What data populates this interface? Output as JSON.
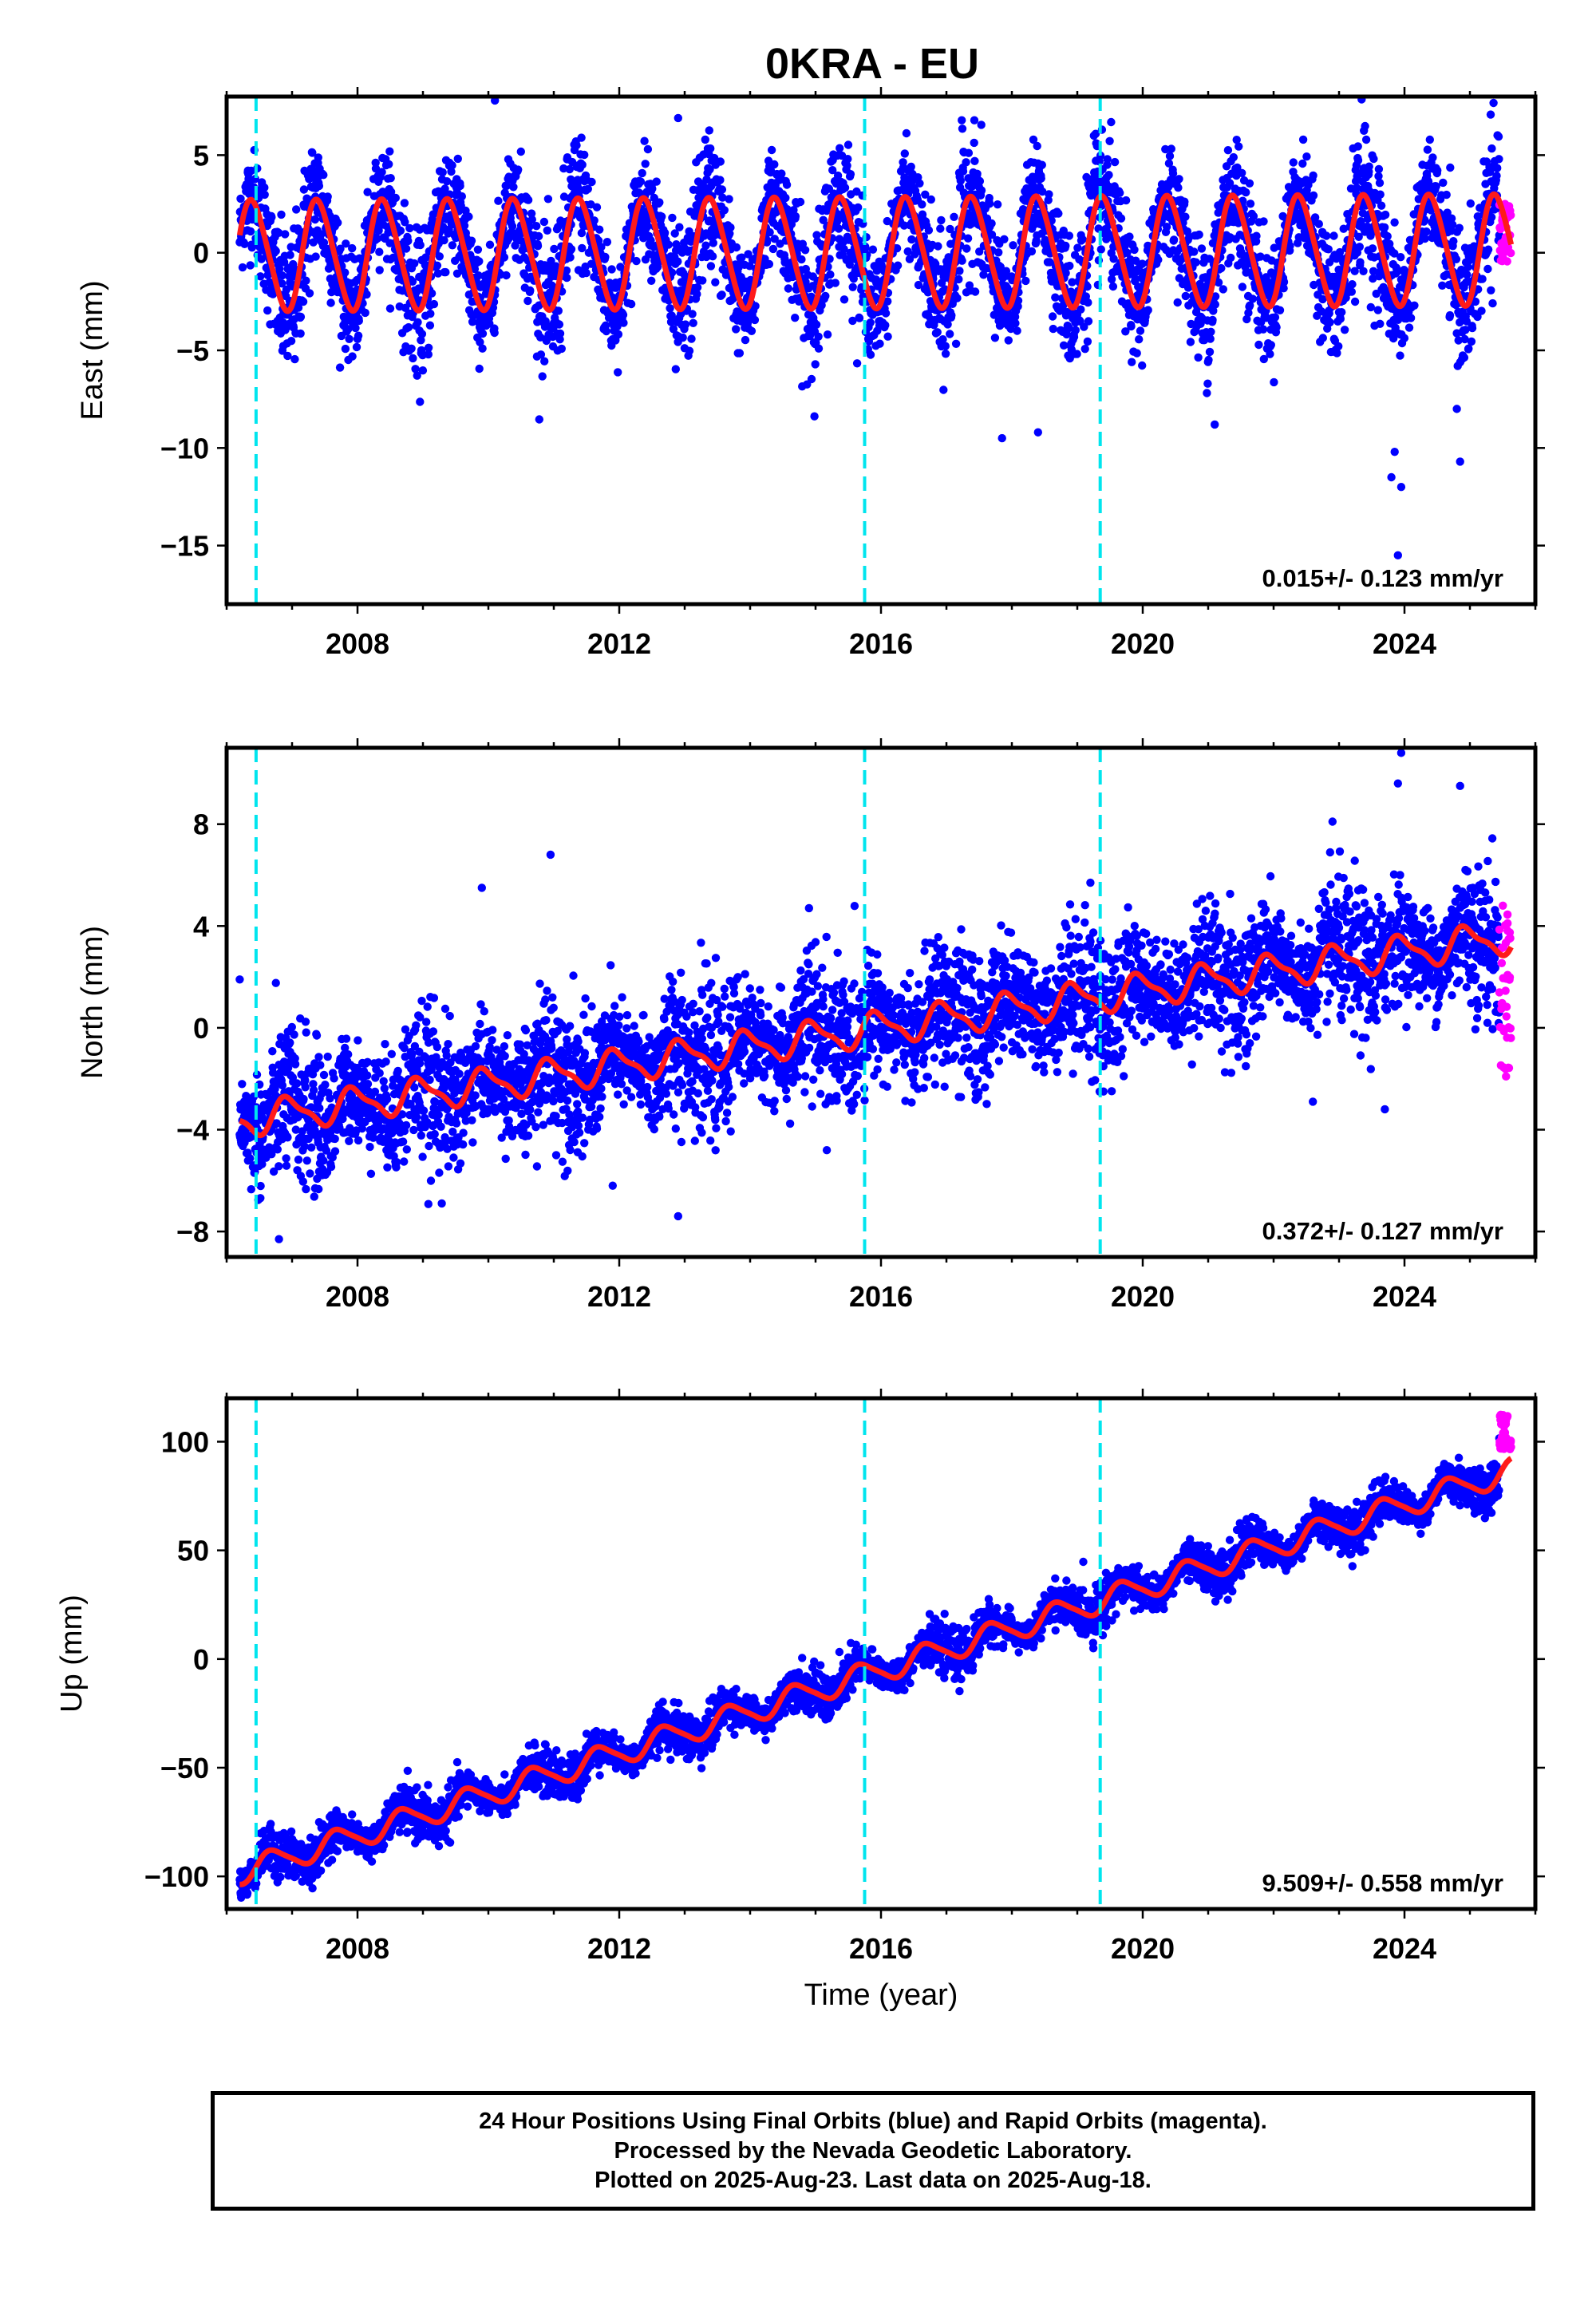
{
  "title": "0KRA - EU",
  "colors": {
    "final_points": "#0000ff",
    "rapid_points": "#ff00ff",
    "model_fit": "#ff1a1a",
    "event_lines": "#00e5ee",
    "frame": "#000000"
  },
  "footer": {
    "line1": "24 Hour Positions Using Final Orbits (blue) and Rapid Orbits (magenta).",
    "line2": "Processed by the Nevada Geodetic Laboratory.",
    "line3": "Plotted on 2025-Aug-23. Last data on 2025-Aug-18."
  },
  "chart_data": [
    {
      "type": "scatter",
      "component": "east",
      "ylabel": "East (mm)",
      "xlabel": "",
      "xlim": [
        2006.0,
        2026.0
      ],
      "ylim": [
        -18,
        8
      ],
      "xticks": [
        2008,
        2012,
        2016,
        2020,
        2024
      ],
      "yticks": [
        5,
        0,
        -5,
        -10,
        -15
      ],
      "ytick_labels": [
        "5",
        "0",
        "−5",
        "−10",
        "−15"
      ],
      "event_lines": [
        2006.45,
        2015.75,
        2019.35
      ],
      "rate_label": "0.015+/- 0.123 mm/yr",
      "series": [
        {
          "name": "Final Orbits",
          "scatter_sigma": 1.5,
          "outliers": [
            [
              2010.1,
              7.8
            ],
            [
              2012.9,
              6.9
            ],
            [
              2017.85,
              -9.5
            ],
            [
              2021.1,
              -8.8
            ],
            [
              2023.8,
              -11.5
            ],
            [
              2023.85,
              -10.2
            ],
            [
              2023.9,
              -15.5
            ],
            [
              2023.95,
              -12.0
            ],
            [
              2024.85,
              -10.7
            ],
            [
              2024.8,
              -8.0
            ],
            [
              2018.4,
              -9.2
            ]
          ]
        },
        {
          "name": "Rapid Orbits",
          "x_range": [
            2025.45,
            2025.63
          ],
          "y_range": [
            -0.5,
            2.5
          ]
        }
      ],
      "model": {
        "offset": 0.0,
        "trend": 0.015,
        "t0": 2016.0,
        "annual_amp": 2.8,
        "annual_phase": 2006.15,
        "semiannual_amp": 0.3
      }
    },
    {
      "type": "scatter",
      "component": "north",
      "ylabel": "North (mm)",
      "xlabel": "",
      "xlim": [
        2006.0,
        2026.0
      ],
      "ylim": [
        -9,
        11
      ],
      "xticks": [
        2008,
        2012,
        2016,
        2020,
        2024
      ],
      "yticks": [
        8,
        4,
        0,
        -4,
        -8
      ],
      "ytick_labels": [
        "8",
        "4",
        "0",
        "−4",
        "−8"
      ],
      "event_lines": [
        2006.45,
        2015.75,
        2019.35
      ],
      "rate_label": "0.372+/- 0.127 mm/yr",
      "series": [
        {
          "name": "Final Orbits",
          "scatter_sigma": 1.2,
          "outliers": [
            [
              2009.9,
              5.5
            ],
            [
              2010.95,
              6.8
            ],
            [
              2014.9,
              4.7
            ],
            [
              2019.2,
              5.7
            ],
            [
              2022.9,
              8.1
            ],
            [
              2023.95,
              10.8
            ],
            [
              2023.9,
              9.6
            ],
            [
              2024.85,
              9.5
            ],
            [
              2006.2,
              1.9
            ],
            [
              2006.8,
              -8.3
            ],
            [
              2012.9,
              -7.4
            ],
            [
              2011.9,
              -6.2
            ],
            [
              2019.4,
              -2.5
            ],
            [
              2023.7,
              -3.2
            ],
            [
              2022.6,
              -2.9
            ]
          ]
        },
        {
          "name": "Rapid Orbits",
          "x_range": [
            2025.45,
            2025.63
          ],
          "y_range": [
            -2.0,
            4.8
          ]
        }
      ],
      "model": {
        "offset": 0.0,
        "trend": 0.372,
        "t0": 2016.0,
        "annual_amp": 0.6,
        "annual_phase": 2006.7,
        "semiannual_amp": 0.2
      }
    },
    {
      "type": "scatter",
      "component": "up",
      "ylabel": "Up (mm)",
      "xlabel": "Time (year)",
      "xlim": [
        2006.0,
        2026.0
      ],
      "ylim": [
        -115,
        120
      ],
      "xticks": [
        2008,
        2012,
        2016,
        2020,
        2024
      ],
      "yticks": [
        100,
        50,
        0,
        -50,
        -100
      ],
      "ytick_labels": [
        "100",
        "50",
        "0",
        "−50",
        "−100"
      ],
      "event_lines": [
        2006.45,
        2015.75,
        2019.35
      ],
      "rate_label": "9.509+/- 0.558 mm/yr",
      "series": [
        {
          "name": "Final Orbits",
          "scatter_sigma": 4.5,
          "outliers": []
        },
        {
          "name": "Rapid Orbits",
          "x_range": [
            2025.45,
            2025.63
          ],
          "y_range": [
            95,
            113
          ]
        }
      ],
      "model": {
        "offset": -5.0,
        "trend": 9.509,
        "t0": 2016.0,
        "annual_amp": 5.5,
        "annual_phase": 2006.45,
        "semiannual_amp": 1.0
      }
    }
  ]
}
